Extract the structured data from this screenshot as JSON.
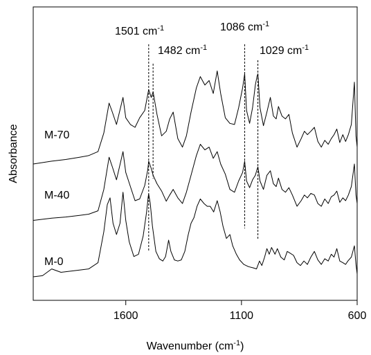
{
  "chart_data": {
    "type": "line",
    "xlabel": "Wavenumber",
    "xunit_base": "cm",
    "xunit_exp": "-1",
    "ylabel": "Absorbance",
    "xlim": [
      2000,
      600
    ],
    "x_reversed": true,
    "x_ticks": [
      1600,
      1100,
      600
    ],
    "y_ticks": [],
    "grid": false,
    "legend": "none",
    "series": [
      {
        "name": "M-70",
        "offset": 2.0,
        "points": [
          [
            2000,
            0.0
          ],
          [
            1920,
            0.05
          ],
          [
            1860,
            0.08
          ],
          [
            1800,
            0.12
          ],
          [
            1760,
            0.15
          ],
          [
            1720,
            0.22
          ],
          [
            1695,
            0.55
          ],
          [
            1672,
            1.08
          ],
          [
            1658,
            0.92
          ],
          [
            1640,
            0.7
          ],
          [
            1612,
            1.18
          ],
          [
            1600,
            0.82
          ],
          [
            1580,
            0.7
          ],
          [
            1560,
            0.65
          ],
          [
            1540,
            0.82
          ],
          [
            1518,
            0.95
          ],
          [
            1501,
            1.32
          ],
          [
            1490,
            1.18
          ],
          [
            1482,
            1.28
          ],
          [
            1465,
            0.88
          ],
          [
            1445,
            0.5
          ],
          [
            1425,
            0.58
          ],
          [
            1410,
            0.8
          ],
          [
            1395,
            0.92
          ],
          [
            1375,
            0.45
          ],
          [
            1355,
            0.3
          ],
          [
            1338,
            0.5
          ],
          [
            1318,
            0.92
          ],
          [
            1295,
            1.35
          ],
          [
            1278,
            1.55
          ],
          [
            1258,
            1.4
          ],
          [
            1240,
            1.48
          ],
          [
            1222,
            1.25
          ],
          [
            1205,
            1.65
          ],
          [
            1190,
            1.25
          ],
          [
            1170,
            0.82
          ],
          [
            1150,
            0.72
          ],
          [
            1130,
            0.7
          ],
          [
            1112,
            1.0
          ],
          [
            1095,
            1.35
          ],
          [
            1086,
            1.6
          ],
          [
            1078,
            0.95
          ],
          [
            1065,
            0.72
          ],
          [
            1052,
            1.0
          ],
          [
            1040,
            1.4
          ],
          [
            1033,
            1.55
          ],
          [
            1029,
            1.6
          ],
          [
            1020,
            1.0
          ],
          [
            1005,
            0.68
          ],
          [
            990,
            0.92
          ],
          [
            975,
            1.18
          ],
          [
            962,
            0.85
          ],
          [
            950,
            0.8
          ],
          [
            940,
            1.02
          ],
          [
            925,
            0.85
          ],
          [
            910,
            0.8
          ],
          [
            895,
            0.88
          ],
          [
            880,
            0.55
          ],
          [
            860,
            0.3
          ],
          [
            842,
            0.45
          ],
          [
            828,
            0.58
          ],
          [
            815,
            0.52
          ],
          [
            800,
            0.58
          ],
          [
            785,
            0.65
          ],
          [
            770,
            0.4
          ],
          [
            755,
            0.3
          ],
          [
            740,
            0.42
          ],
          [
            725,
            0.35
          ],
          [
            712,
            0.45
          ],
          [
            700,
            0.52
          ],
          [
            688,
            0.62
          ],
          [
            675,
            0.38
          ],
          [
            662,
            0.52
          ],
          [
            650,
            0.4
          ],
          [
            638,
            0.52
          ],
          [
            625,
            0.7
          ],
          [
            612,
            1.45
          ],
          [
            605,
            0.5
          ],
          [
            600,
            0.3
          ]
        ]
      },
      {
        "name": "M-40",
        "offset": 1.0,
        "points": [
          [
            2000,
            0.0
          ],
          [
            1920,
            0.04
          ],
          [
            1860,
            0.06
          ],
          [
            1800,
            0.09
          ],
          [
            1760,
            0.11
          ],
          [
            1720,
            0.17
          ],
          [
            1695,
            0.55
          ],
          [
            1672,
            1.12
          ],
          [
            1658,
            0.95
          ],
          [
            1640,
            0.72
          ],
          [
            1612,
            1.22
          ],
          [
            1600,
            0.85
          ],
          [
            1580,
            0.6
          ],
          [
            1560,
            0.35
          ],
          [
            1540,
            0.38
          ],
          [
            1518,
            0.62
          ],
          [
            1505,
            0.9
          ],
          [
            1501,
            1.05
          ],
          [
            1490,
            0.92
          ],
          [
            1482,
            0.8
          ],
          [
            1465,
            0.65
          ],
          [
            1445,
            0.52
          ],
          [
            1425,
            0.34
          ],
          [
            1410,
            0.45
          ],
          [
            1395,
            0.55
          ],
          [
            1375,
            0.4
          ],
          [
            1355,
            0.3
          ],
          [
            1338,
            0.5
          ],
          [
            1318,
            0.8
          ],
          [
            1295,
            1.15
          ],
          [
            1278,
            1.35
          ],
          [
            1258,
            1.25
          ],
          [
            1240,
            1.3
          ],
          [
            1222,
            1.1
          ],
          [
            1205,
            1.22
          ],
          [
            1190,
            1.0
          ],
          [
            1170,
            0.82
          ],
          [
            1150,
            0.55
          ],
          [
            1130,
            0.5
          ],
          [
            1112,
            0.7
          ],
          [
            1095,
            0.85
          ],
          [
            1086,
            1.05
          ],
          [
            1078,
            0.7
          ],
          [
            1065,
            0.58
          ],
          [
            1052,
            0.72
          ],
          [
            1040,
            0.8
          ],
          [
            1033,
            0.9
          ],
          [
            1029,
            0.95
          ],
          [
            1020,
            0.7
          ],
          [
            1005,
            0.55
          ],
          [
            990,
            0.8
          ],
          [
            975,
            0.88
          ],
          [
            962,
            0.65
          ],
          [
            950,
            0.6
          ],
          [
            940,
            0.75
          ],
          [
            925,
            0.55
          ],
          [
            910,
            0.5
          ],
          [
            895,
            0.58
          ],
          [
            880,
            0.45
          ],
          [
            860,
            0.25
          ],
          [
            842,
            0.35
          ],
          [
            828,
            0.45
          ],
          [
            815,
            0.4
          ],
          [
            800,
            0.48
          ],
          [
            785,
            0.45
          ],
          [
            770,
            0.3
          ],
          [
            755,
            0.25
          ],
          [
            740,
            0.38
          ],
          [
            725,
            0.3
          ],
          [
            712,
            0.42
          ],
          [
            700,
            0.45
          ],
          [
            688,
            0.52
          ],
          [
            675,
            0.32
          ],
          [
            662,
            0.4
          ],
          [
            650,
            0.35
          ],
          [
            638,
            0.45
          ],
          [
            625,
            0.6
          ],
          [
            612,
            1.0
          ],
          [
            605,
            0.45
          ],
          [
            600,
            0.3
          ]
        ]
      },
      {
        "name": "M-0",
        "offset": 0.0,
        "points": [
          [
            2000,
            0.0
          ],
          [
            1960,
            0.02
          ],
          [
            1920,
            0.14
          ],
          [
            1880,
            0.08
          ],
          [
            1840,
            0.1
          ],
          [
            1800,
            0.12
          ],
          [
            1760,
            0.14
          ],
          [
            1720,
            0.25
          ],
          [
            1695,
            0.8
          ],
          [
            1680,
            1.28
          ],
          [
            1668,
            1.4
          ],
          [
            1655,
            0.95
          ],
          [
            1640,
            0.75
          ],
          [
            1625,
            0.95
          ],
          [
            1612,
            1.5
          ],
          [
            1600,
            1.0
          ],
          [
            1585,
            0.62
          ],
          [
            1565,
            0.36
          ],
          [
            1545,
            0.4
          ],
          [
            1525,
            0.72
          ],
          [
            1510,
            1.15
          ],
          [
            1503,
            1.42
          ],
          [
            1501,
            1.47
          ],
          [
            1494,
            1.3
          ],
          [
            1485,
            0.9
          ],
          [
            1470,
            0.45
          ],
          [
            1455,
            0.32
          ],
          [
            1440,
            0.28
          ],
          [
            1428,
            0.36
          ],
          [
            1415,
            0.65
          ],
          [
            1405,
            0.45
          ],
          [
            1390,
            0.3
          ],
          [
            1375,
            0.28
          ],
          [
            1360,
            0.3
          ],
          [
            1345,
            0.45
          ],
          [
            1330,
            0.75
          ],
          [
            1318,
            0.95
          ],
          [
            1305,
            1.05
          ],
          [
            1292,
            1.25
          ],
          [
            1278,
            1.38
          ],
          [
            1262,
            1.3
          ],
          [
            1248,
            1.25
          ],
          [
            1235,
            1.25
          ],
          [
            1220,
            1.15
          ],
          [
            1205,
            1.35
          ],
          [
            1192,
            1.15
          ],
          [
            1180,
            0.9
          ],
          [
            1165,
            0.68
          ],
          [
            1150,
            0.75
          ],
          [
            1138,
            0.55
          ],
          [
            1122,
            0.4
          ],
          [
            1108,
            0.3
          ],
          [
            1090,
            0.22
          ],
          [
            1070,
            0.18
          ],
          [
            1050,
            0.16
          ],
          [
            1035,
            0.14
          ],
          [
            1022,
            0.28
          ],
          [
            1012,
            0.2
          ],
          [
            1000,
            0.35
          ],
          [
            990,
            0.5
          ],
          [
            980,
            0.4
          ],
          [
            970,
            0.52
          ],
          [
            955,
            0.4
          ],
          [
            945,
            0.5
          ],
          [
            930,
            0.35
          ],
          [
            915,
            0.3
          ],
          [
            902,
            0.45
          ],
          [
            890,
            0.42
          ],
          [
            875,
            0.38
          ],
          [
            860,
            0.25
          ],
          [
            845,
            0.2
          ],
          [
            830,
            0.28
          ],
          [
            815,
            0.22
          ],
          [
            800,
            0.35
          ],
          [
            785,
            0.45
          ],
          [
            770,
            0.3
          ],
          [
            755,
            0.22
          ],
          [
            740,
            0.32
          ],
          [
            725,
            0.28
          ],
          [
            712,
            0.4
          ],
          [
            700,
            0.35
          ],
          [
            688,
            0.5
          ],
          [
            675,
            0.28
          ],
          [
            662,
            0.25
          ],
          [
            650,
            0.22
          ],
          [
            640,
            0.28
          ],
          [
            625,
            0.35
          ],
          [
            612,
            0.55
          ],
          [
            605,
            0.22
          ],
          [
            600,
            0.05
          ]
        ]
      }
    ],
    "reference_lines": [
      {
        "x": 1501,
        "label": "1501",
        "unit_base": "cm",
        "unit_exp": "-1"
      },
      {
        "x": 1482,
        "label": "1482",
        "unit_base": "cm",
        "unit_exp": "-1"
      },
      {
        "x": 1086,
        "label": "1086",
        "unit_base": "cm",
        "unit_exp": "-1"
      },
      {
        "x": 1029,
        "label": "1029",
        "unit_base": "cm",
        "unit_exp": "-1"
      }
    ],
    "colors": {
      "line": "#000000",
      "background": "#ffffff"
    }
  }
}
